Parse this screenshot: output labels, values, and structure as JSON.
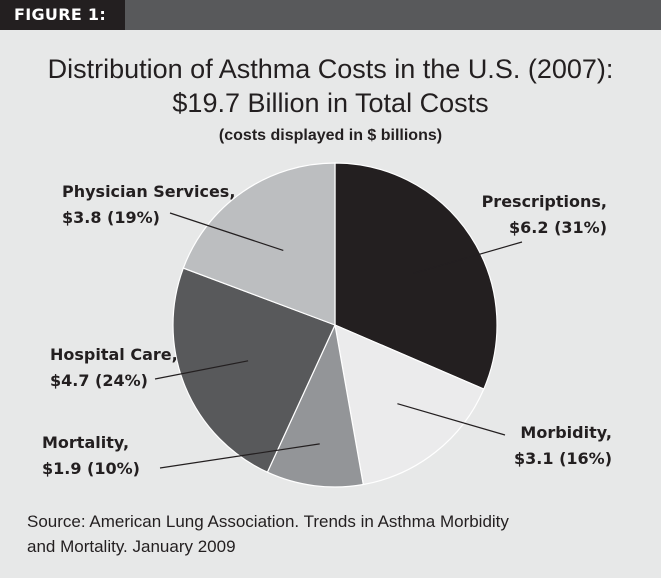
{
  "figure_label": "FIGURE 1:",
  "title_line1": "Distribution of Asthma Costs in the U.S. (2007):",
  "title_line2": "$19.7 Billion in Total Costs",
  "subtitle": "(costs displayed in $ billions)",
  "source_line1": "Source: American Lung Association. Trends in Asthma Morbidity",
  "source_line2": "and Mortality. January 2009",
  "colors": {
    "header_bar": "#58595b",
    "label_tab": "#231f20",
    "background": "#e7e8e8"
  },
  "chart_data": {
    "type": "pie",
    "title": "Distribution of Asthma Costs in the U.S. (2007): $19.7 Billion in Total Costs",
    "subtitle": "(costs displayed in $ billions)",
    "unit": "$ billions",
    "total": 19.7,
    "slices": [
      {
        "name": "Prescriptions,",
        "value": 6.2,
        "percent": 31,
        "value_text": "$6.2 (31%)",
        "color": "#231f20"
      },
      {
        "name": "Morbidity,",
        "value": 3.1,
        "percent": 16,
        "value_text": "$3.1 (16%)",
        "color": "#ebebec"
      },
      {
        "name": "Mortality,",
        "value": 1.9,
        "percent": 10,
        "value_text": "$1.9 (10%)",
        "color": "#939598"
      },
      {
        "name": "Hospital Care,",
        "value": 4.7,
        "percent": 24,
        "value_text": "$4.7 (24%)",
        "color": "#58595b"
      },
      {
        "name": "Physician Services,",
        "value": 3.8,
        "percent": 19,
        "value_text": "$3.8 (19%)",
        "color": "#bcbec0"
      }
    ],
    "start_angle": "12 o'clock",
    "direction": "clockwise",
    "legend": "none (leader-line labels)"
  }
}
